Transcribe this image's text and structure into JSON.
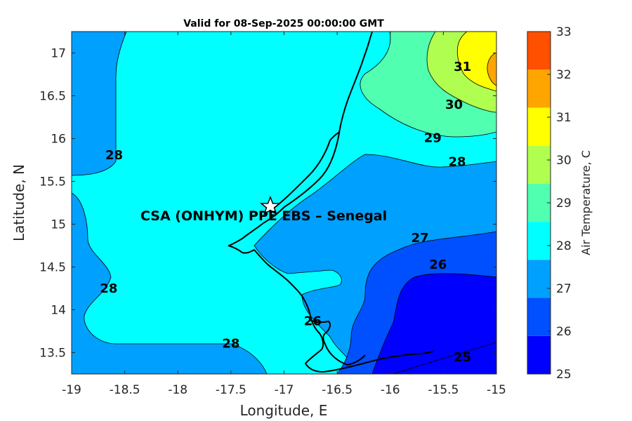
{
  "map": {
    "title": "Valid for 08-Sep-2025 00:00:00 GMT",
    "xlabel": "Longitude, E",
    "ylabel": "Latitude, N",
    "x_ticks": [
      "-19",
      "-18.5",
      "-18",
      "-17.5",
      "-17",
      "-16.5",
      "-16",
      "-15.5",
      "-15"
    ],
    "y_ticks": [
      "17",
      "16.5",
      "16",
      "15.5",
      "15",
      "14.5",
      "14",
      "13.5"
    ],
    "site_label": "CSA (ONHYM) PPE EBS  – Senegal",
    "site_marker": "star-icon",
    "contour_labels": [
      {
        "text": "31",
        "lon": -15.32,
        "lat": 16.83
      },
      {
        "text": "30",
        "lon": -15.4,
        "lat": 16.39
      },
      {
        "text": "29",
        "lon": -15.6,
        "lat": 16.0
      },
      {
        "text": "28",
        "lon": -15.37,
        "lat": 15.72
      },
      {
        "text": "28",
        "lon": -18.6,
        "lat": 15.8
      },
      {
        "text": "28",
        "lon": -18.65,
        "lat": 14.24
      },
      {
        "text": "28",
        "lon": -17.5,
        "lat": 13.6
      },
      {
        "text": "27",
        "lon": -15.72,
        "lat": 14.83
      },
      {
        "text": "26",
        "lon": -15.55,
        "lat": 14.52
      },
      {
        "text": "25",
        "lon": -15.32,
        "lat": 13.44
      },
      {
        "text": "26",
        "lon": -16.73,
        "lat": 13.86
      }
    ]
  },
  "colorbar": {
    "label": "Air Temperature, C",
    "ticks": [
      "33",
      "32",
      "31",
      "30",
      "29",
      "28",
      "27",
      "26",
      "25"
    ],
    "colors": [
      "#0000ff",
      "#0050ff",
      "#00a0ff",
      "#00ffff",
      "#50ffb0",
      "#b0ff50",
      "#ffff00",
      "#ffa500",
      "#ff5000"
    ],
    "range": [
      25,
      33
    ]
  },
  "chart_data": {
    "type": "heatmap",
    "title": "Valid for 08-Sep-2025 00:00:00 GMT",
    "xlabel": "Longitude, E",
    "ylabel": "Latitude, N",
    "xlim": [
      -19,
      -15
    ],
    "ylim": [
      13.25,
      17.25
    ],
    "contour_levels": [
      25,
      26,
      27,
      28,
      29,
      30,
      31,
      32,
      33
    ],
    "colorbar_label": "Air Temperature, C",
    "site": {
      "name": "CSA (ONHYM) PPE EBS  – Senegal",
      "lon": -17.12,
      "lat": 15.23
    }
  }
}
